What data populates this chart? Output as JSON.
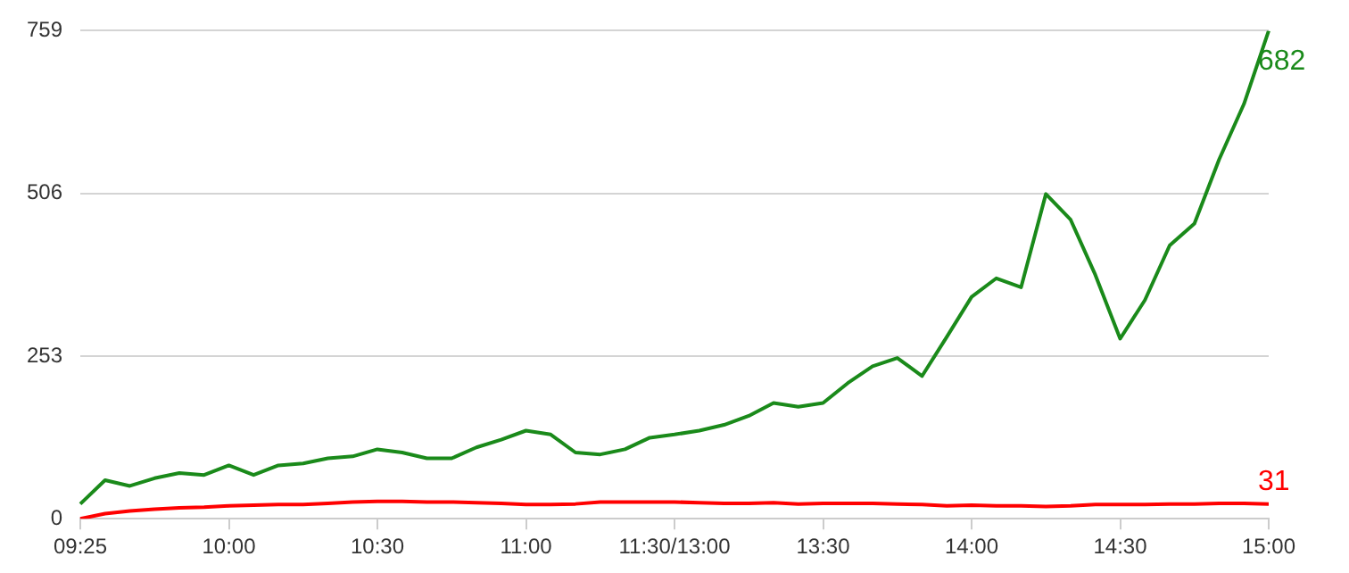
{
  "chart_data": {
    "type": "line",
    "categories": [
      "09:25",
      null,
      null,
      null,
      null,
      null,
      "10:00",
      null,
      null,
      null,
      null,
      null,
      "10:30",
      null,
      null,
      null,
      null,
      null,
      "11:00",
      null,
      null,
      null,
      null,
      null,
      "11:30/13:00",
      null,
      null,
      null,
      null,
      null,
      "13:30",
      null,
      null,
      null,
      null,
      null,
      "14:00",
      null,
      null,
      null,
      null,
      null,
      "14:30",
      null,
      null,
      null,
      null,
      null,
      "15:00"
    ],
    "series": [
      {
        "color": "#1a8a1a",
        "values": [
          23,
          60,
          51,
          63,
          71,
          68,
          83,
          68,
          83,
          86,
          94,
          97,
          108,
          103,
          94,
          94,
          111,
          123,
          137,
          131,
          103,
          100,
          108,
          126,
          131,
          137,
          146,
          160,
          180,
          174,
          180,
          211,
          237,
          250,
          222,
          283,
          345,
          374,
          360,
          505,
          465,
          379,
          280,
          340,
          425,
          459,
          559,
          645,
          759
        ]
      },
      {
        "color": "#ff0000",
        "values": [
          0,
          8,
          12,
          15,
          17,
          18,
          20,
          21,
          22,
          22,
          24,
          26,
          27,
          27,
          26,
          26,
          25,
          24,
          22,
          22,
          23,
          26,
          26,
          26,
          26,
          25,
          24,
          24,
          25,
          23,
          24,
          24,
          24,
          23,
          22,
          20,
          21,
          20,
          20,
          19,
          20,
          22,
          22,
          22,
          23,
          23,
          24,
          24,
          23
        ]
      }
    ],
    "annotations": [
      {
        "text": "682",
        "x": "15:00",
        "y": 759
      },
      {
        "text": "31",
        "x": "15:00",
        "y": 23
      }
    ],
    "ylim": [
      0,
      759
    ],
    "yticks": [
      0,
      253,
      506,
      759
    ],
    "grid": "y",
    "legend": false,
    "marker": "none",
    "line_style": "solid"
  }
}
